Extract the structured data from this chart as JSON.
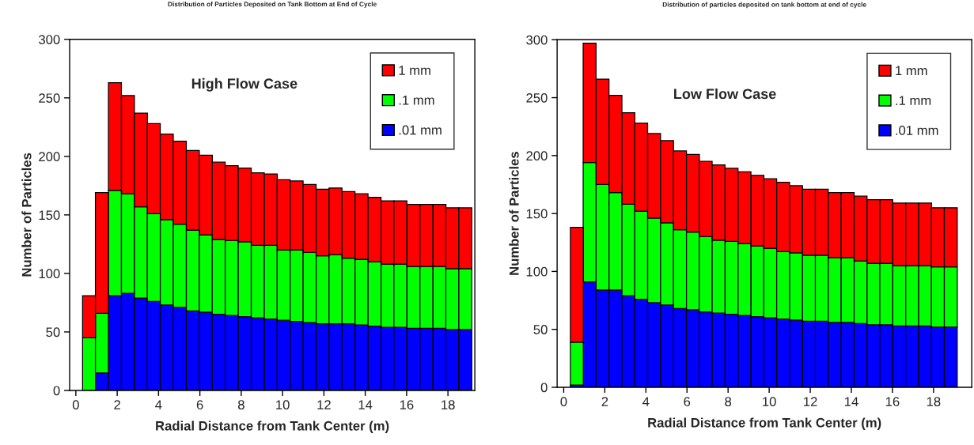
{
  "chart_data": [
    {
      "type": "bar",
      "title": "Distribution of Particles Deposited on Tank Bottom at End of Cycle",
      "xlabel": "Radial Distance from Tank Center (m)",
      "ylabel": "Number of Particles",
      "annotations": [
        "High Flow Case"
      ],
      "stacked": true,
      "x": [
        0.64,
        1.26,
        1.89,
        2.52,
        3.15,
        3.77,
        4.4,
        5.03,
        5.66,
        6.29,
        6.91,
        7.54,
        8.17,
        8.8,
        9.43,
        10.05,
        10.68,
        11.31,
        11.94,
        12.56,
        13.19,
        13.82,
        14.45,
        15.08,
        15.7,
        16.33,
        16.96,
        17.59,
        18.21,
        18.84
      ],
      "series": [
        {
          "name": ".01 mm",
          "color": "#0000ff",
          "values": [
            0,
            15,
            81,
            83,
            79,
            76,
            73,
            71,
            68,
            67,
            65,
            64,
            63,
            62,
            61,
            60,
            59,
            58,
            57,
            57,
            57,
            56,
            55,
            54,
            54,
            53,
            53,
            53,
            52,
            52
          ]
        },
        {
          "name": ".1 mm",
          "color": "#00ff00",
          "values": [
            45,
            51,
            90,
            85,
            78,
            75,
            73,
            71,
            69,
            66,
            64,
            64,
            64,
            62,
            63,
            60,
            61,
            60,
            58,
            59,
            56,
            56,
            55,
            54,
            54,
            53,
            53,
            53,
            52,
            52
          ]
        },
        {
          "name": "1 mm",
          "color": "#ff0000",
          "values": [
            36,
            103,
            92,
            84,
            80,
            77,
            73,
            71,
            68,
            68,
            66,
            64,
            63,
            62,
            61,
            60,
            59,
            58,
            57,
            57,
            57,
            56,
            55,
            54,
            54,
            53,
            53,
            53,
            52,
            52
          ]
        }
      ],
      "xlim": [
        -0.3,
        19.3
      ],
      "xticks": [
        0,
        2,
        4,
        6,
        8,
        10,
        12,
        14,
        16,
        18
      ],
      "ylim": [
        0,
        300
      ],
      "yticks": [
        0,
        50,
        100,
        150,
        200,
        250,
        300
      ],
      "legend": "top right"
    },
    {
      "type": "bar",
      "title": "Distribution of particles deposited on tank bottom at end of cycle",
      "xlabel": "Radial Distance from Tank Center (m)",
      "ylabel": "Number of Particles",
      "annotations": [
        "Low Flow Case"
      ],
      "stacked": true,
      "x": [
        0.64,
        1.26,
        1.89,
        2.52,
        3.15,
        3.77,
        4.4,
        5.03,
        5.66,
        6.29,
        6.91,
        7.54,
        8.17,
        8.8,
        9.43,
        10.05,
        10.68,
        11.31,
        11.94,
        12.56,
        13.19,
        13.82,
        14.45,
        15.08,
        15.7,
        16.33,
        16.96,
        17.59,
        18.21,
        18.84
      ],
      "series": [
        {
          "name": ".01 mm",
          "color": "#0000ff",
          "values": [
            2,
            91,
            84,
            84,
            79,
            76,
            73,
            71,
            68,
            67,
            65,
            64,
            63,
            62,
            61,
            60,
            59,
            58,
            57,
            57,
            56,
            56,
            55,
            54,
            54,
            53,
            53,
            53,
            52,
            52
          ]
        },
        {
          "name": ".1 mm",
          "color": "#00ff00",
          "values": [
            37,
            103,
            91,
            84,
            79,
            76,
            73,
            71,
            68,
            67,
            65,
            63,
            63,
            62,
            61,
            60,
            58,
            58,
            57,
            57,
            56,
            56,
            54,
            53,
            53,
            52,
            52,
            52,
            52,
            52
          ]
        },
        {
          "name": "1 mm",
          "color": "#ff0000",
          "values": [
            99,
            103,
            91,
            84,
            79,
            76,
            73,
            71,
            68,
            67,
            65,
            65,
            63,
            62,
            61,
            60,
            60,
            58,
            57,
            57,
            56,
            56,
            56,
            55,
            55,
            54,
            54,
            54,
            51,
            51
          ]
        }
      ],
      "xlim": [
        -0.32,
        19.86
      ],
      "xticks": [
        0,
        2,
        4,
        6,
        8,
        10,
        12,
        14,
        16,
        18
      ],
      "ylim": [
        0,
        300
      ],
      "yticks": [
        0,
        50,
        100,
        150,
        200,
        250,
        300
      ],
      "legend": "top right"
    }
  ]
}
